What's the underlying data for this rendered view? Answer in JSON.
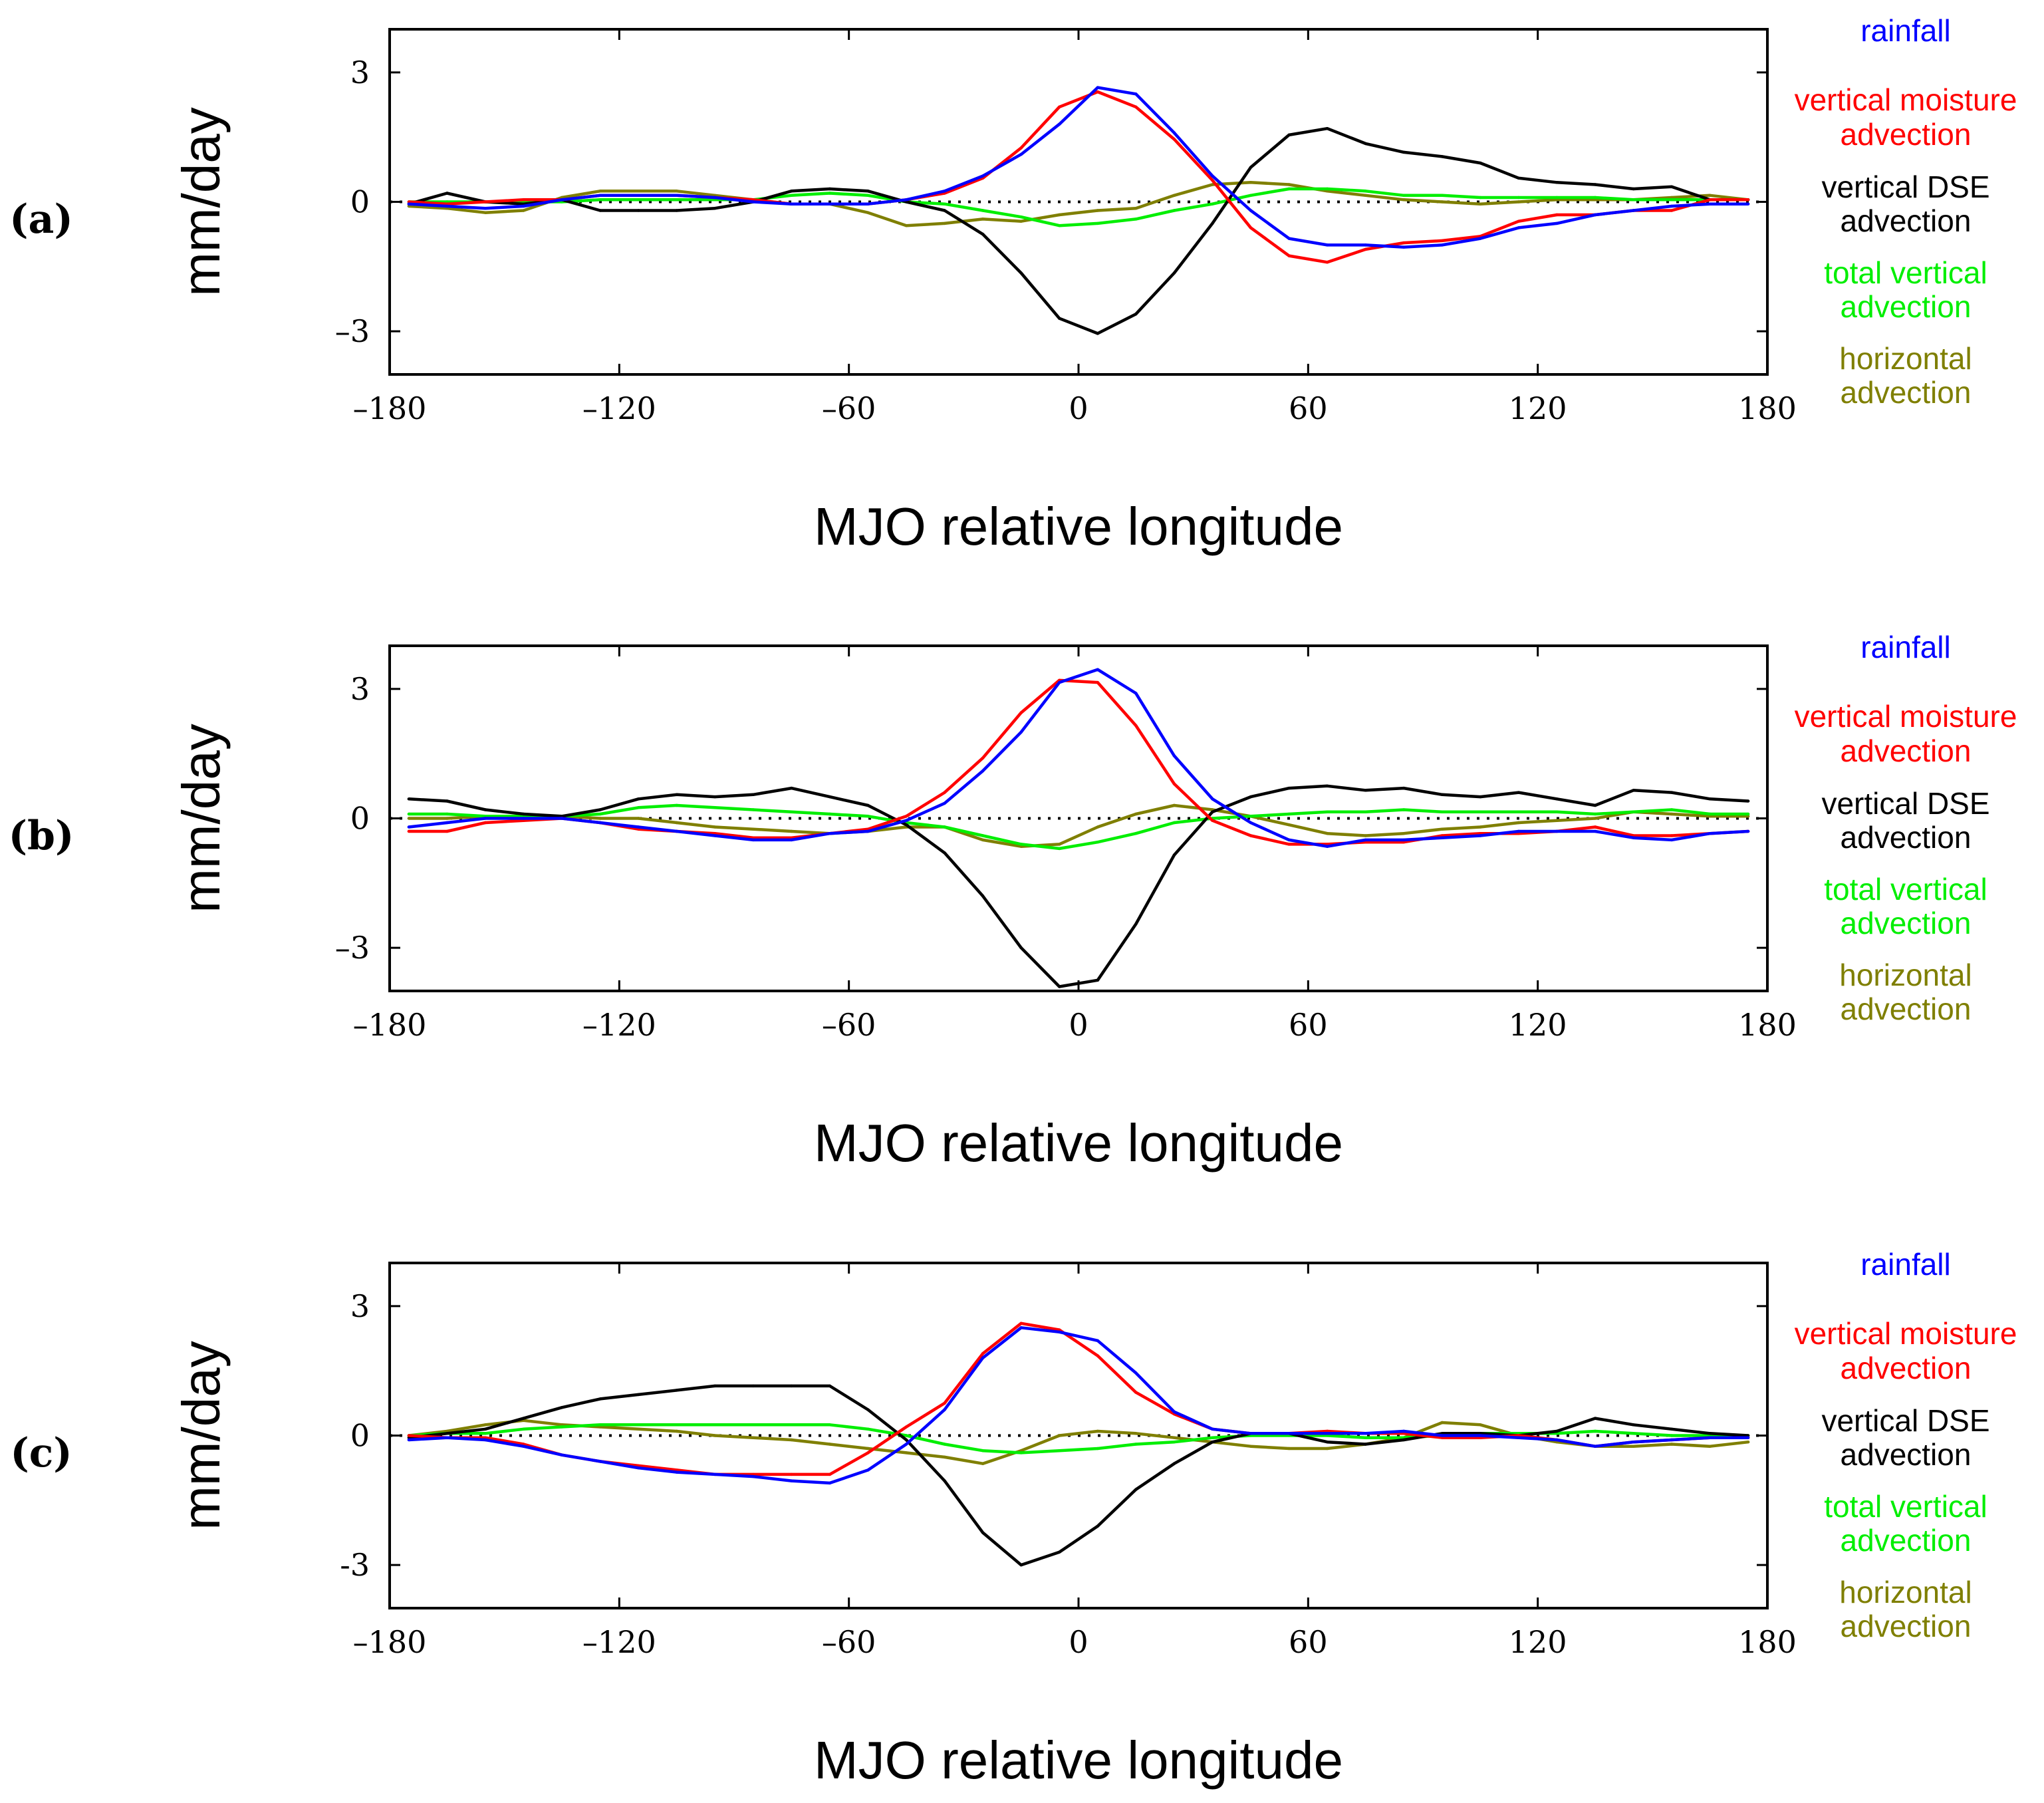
{
  "figure": {
    "xlabel": "MJO relative longitude",
    "ylabel": "mm/day",
    "legend": [
      {
        "key": "rainfall",
        "lines": [
          "rainfall"
        ]
      },
      {
        "key": "moisture",
        "lines": [
          "vertical moisture",
          "advection"
        ]
      },
      {
        "key": "dse",
        "lines": [
          "vertical DSE",
          "advection"
        ]
      },
      {
        "key": "total",
        "lines": [
          "total vertical",
          "advection"
        ]
      },
      {
        "key": "horizontal",
        "lines": [
          "horizontal",
          "advection"
        ]
      }
    ]
  },
  "chart_data": [
    {
      "type": "line",
      "panel_label": "(a)",
      "xlabel": "MJO relative longitude",
      "ylabel": "mm/day",
      "xlim": [
        -180,
        180
      ],
      "ylim": [
        -4,
        4
      ],
      "xticks": [
        -180,
        -120,
        -60,
        0,
        60,
        120,
        180
      ],
      "xtick_labels": [
        "–180",
        "–120",
        "–60",
        "0",
        "60",
        "120",
        "180"
      ],
      "yticks": [
        -3,
        0,
        3
      ],
      "ytick_labels": [
        "–3",
        "0",
        "3"
      ],
      "legend_position": "right",
      "zero_line": "dotted",
      "x": [
        -175,
        -165,
        -155,
        -145,
        -135,
        -125,
        -115,
        -105,
        -95,
        -85,
        -75,
        -65,
        -55,
        -45,
        -35,
        -25,
        -15,
        -5,
        5,
        15,
        25,
        35,
        45,
        55,
        65,
        75,
        85,
        95,
        105,
        115,
        125,
        135,
        145,
        155,
        165,
        175
      ],
      "series": [
        {
          "key": "rainfall",
          "name": "rainfall",
          "color": "#0000ff",
          "values": [
            -0.05,
            -0.1,
            -0.15,
            -0.1,
            0.05,
            0.15,
            0.15,
            0.15,
            0.1,
            0.0,
            -0.05,
            -0.05,
            -0.05,
            0.05,
            0.25,
            0.6,
            1.1,
            1.8,
            2.65,
            2.5,
            1.6,
            0.6,
            -0.2,
            -0.85,
            -1.0,
            -1.0,
            -1.05,
            -1.0,
            -0.85,
            -0.6,
            -0.5,
            -0.3,
            -0.2,
            -0.1,
            -0.05,
            -0.05
          ]
        },
        {
          "key": "moisture",
          "name": "vertical moisture advection",
          "color": "#ff0000",
          "values": [
            0.0,
            -0.05,
            0.0,
            0.05,
            0.05,
            0.15,
            0.15,
            0.15,
            0.1,
            0.05,
            -0.05,
            -0.05,
            -0.05,
            0.05,
            0.2,
            0.55,
            1.25,
            2.2,
            2.55,
            2.2,
            1.45,
            0.5,
            -0.6,
            -1.25,
            -1.4,
            -1.1,
            -0.95,
            -0.9,
            -0.8,
            -0.45,
            -0.3,
            -0.3,
            -0.2,
            -0.2,
            0.05,
            0.05
          ]
        },
        {
          "key": "dse",
          "name": "vertical DSE advection",
          "color": "#000000",
          "values": [
            -0.05,
            0.2,
            0.0,
            -0.05,
            0.05,
            -0.2,
            -0.2,
            -0.2,
            -0.15,
            0.0,
            0.25,
            0.3,
            0.25,
            0.0,
            -0.2,
            -0.75,
            -1.65,
            -2.7,
            -3.05,
            -2.6,
            -1.65,
            -0.5,
            0.8,
            1.55,
            1.7,
            1.35,
            1.15,
            1.05,
            0.9,
            0.55,
            0.45,
            0.4,
            0.3,
            0.35,
            0.05,
            0.05
          ]
        },
        {
          "key": "total",
          "name": "total vertical advection",
          "color": "#00ee00",
          "values": [
            0.0,
            0.0,
            0.0,
            0.0,
            0.0,
            0.05,
            0.05,
            0.05,
            0.05,
            0.05,
            0.15,
            0.2,
            0.15,
            0.0,
            -0.05,
            -0.2,
            -0.35,
            -0.55,
            -0.5,
            -0.4,
            -0.2,
            -0.05,
            0.15,
            0.3,
            0.3,
            0.25,
            0.15,
            0.15,
            0.1,
            0.1,
            0.1,
            0.1,
            0.05,
            0.05,
            0.05,
            0.05
          ]
        },
        {
          "key": "horizontal",
          "name": "horizontal advection",
          "color": "#7f7f00",
          "values": [
            -0.1,
            -0.15,
            -0.25,
            -0.2,
            0.1,
            0.25,
            0.25,
            0.25,
            0.15,
            0.05,
            -0.05,
            -0.05,
            -0.25,
            -0.55,
            -0.5,
            -0.4,
            -0.45,
            -0.3,
            -0.2,
            -0.15,
            0.15,
            0.4,
            0.45,
            0.4,
            0.25,
            0.15,
            0.05,
            0.0,
            -0.05,
            0.0,
            0.05,
            0.05,
            0.05,
            0.1,
            0.15,
            0.05
          ]
        }
      ]
    },
    {
      "type": "line",
      "panel_label": "(b)",
      "xlabel": "MJO relative longitude",
      "ylabel": "mm/day",
      "xlim": [
        -180,
        180
      ],
      "ylim": [
        -4,
        4
      ],
      "xticks": [
        -180,
        -120,
        -60,
        0,
        60,
        120,
        180
      ],
      "xtick_labels": [
        "–180",
        "–120",
        "–60",
        "0",
        "60",
        "120",
        "180"
      ],
      "yticks": [
        -3,
        0,
        3
      ],
      "ytick_labels": [
        "–3",
        "0",
        "3"
      ],
      "legend_position": "right",
      "zero_line": "dotted",
      "x": [
        -175,
        -165,
        -155,
        -145,
        -135,
        -125,
        -115,
        -105,
        -95,
        -85,
        -75,
        -65,
        -55,
        -45,
        -35,
        -25,
        -15,
        -5,
        5,
        15,
        25,
        35,
        45,
        55,
        65,
        75,
        85,
        95,
        105,
        115,
        125,
        135,
        145,
        155,
        165,
        175
      ],
      "series": [
        {
          "key": "rainfall",
          "name": "rainfall",
          "color": "#0000ff",
          "values": [
            -0.2,
            -0.1,
            0.0,
            0.0,
            0.0,
            -0.1,
            -0.2,
            -0.3,
            -0.4,
            -0.5,
            -0.5,
            -0.35,
            -0.3,
            -0.05,
            0.35,
            1.1,
            2.0,
            3.15,
            3.45,
            2.9,
            1.45,
            0.45,
            -0.1,
            -0.5,
            -0.65,
            -0.5,
            -0.5,
            -0.45,
            -0.4,
            -0.3,
            -0.3,
            -0.3,
            -0.45,
            -0.5,
            -0.35,
            -0.3
          ]
        },
        {
          "key": "moisture",
          "name": "vertical moisture advection",
          "color": "#ff0000",
          "values": [
            -0.3,
            -0.3,
            -0.1,
            -0.05,
            0.0,
            -0.1,
            -0.25,
            -0.3,
            -0.35,
            -0.45,
            -0.45,
            -0.35,
            -0.25,
            0.05,
            0.6,
            1.4,
            2.45,
            3.2,
            3.15,
            2.15,
            0.8,
            -0.05,
            -0.4,
            -0.6,
            -0.6,
            -0.55,
            -0.55,
            -0.4,
            -0.35,
            -0.35,
            -0.3,
            -0.2,
            -0.4,
            -0.4,
            -0.35,
            -0.3
          ]
        },
        {
          "key": "dse",
          "name": "vertical DSE advection",
          "color": "#000000",
          "values": [
            0.45,
            0.4,
            0.2,
            0.1,
            0.05,
            0.2,
            0.45,
            0.55,
            0.5,
            0.55,
            0.7,
            0.5,
            0.3,
            -0.15,
            -0.8,
            -1.8,
            -3.0,
            -3.9,
            -3.75,
            -2.45,
            -0.85,
            0.15,
            0.5,
            0.7,
            0.75,
            0.65,
            0.7,
            0.55,
            0.5,
            0.6,
            0.45,
            0.3,
            0.65,
            0.6,
            0.45,
            0.4
          ]
        },
        {
          "key": "total",
          "name": "total vertical advection",
          "color": "#00ee00",
          "values": [
            0.1,
            0.1,
            0.05,
            0.05,
            0.05,
            0.1,
            0.25,
            0.3,
            0.25,
            0.2,
            0.15,
            0.1,
            0.05,
            -0.1,
            -0.2,
            -0.4,
            -0.6,
            -0.7,
            -0.55,
            -0.35,
            -0.1,
            0.0,
            0.05,
            0.1,
            0.15,
            0.15,
            0.2,
            0.15,
            0.15,
            0.15,
            0.15,
            0.1,
            0.15,
            0.2,
            0.1,
            0.1
          ]
        },
        {
          "key": "horizontal",
          "name": "horizontal advection",
          "color": "#7f7f00",
          "values": [
            0.0,
            0.0,
            0.05,
            0.05,
            0.05,
            0.0,
            0.0,
            -0.1,
            -0.2,
            -0.25,
            -0.3,
            -0.35,
            -0.3,
            -0.2,
            -0.2,
            -0.5,
            -0.65,
            -0.6,
            -0.2,
            0.1,
            0.3,
            0.2,
            0.05,
            -0.15,
            -0.35,
            -0.4,
            -0.35,
            -0.25,
            -0.2,
            -0.1,
            -0.05,
            0.0,
            0.15,
            0.1,
            0.05,
            0.05
          ]
        }
      ]
    },
    {
      "type": "line",
      "panel_label": "(c)",
      "xlabel": "MJO relative longitude",
      "ylabel": "mm/day",
      "xlim": [
        -180,
        180
      ],
      "ylim": [
        -4,
        4
      ],
      "xticks": [
        -180,
        -120,
        -60,
        0,
        60,
        120,
        180
      ],
      "xtick_labels": [
        "–180",
        "–120",
        "–60",
        "0",
        "60",
        "120",
        "180"
      ],
      "yticks": [
        -3,
        0,
        3
      ],
      "ytick_labels": [
        "-3",
        "0",
        "3"
      ],
      "legend_position": "right",
      "zero_line": "dotted",
      "x": [
        -175,
        -165,
        -155,
        -145,
        -135,
        -125,
        -115,
        -105,
        -95,
        -85,
        -75,
        -65,
        -55,
        -45,
        -35,
        -25,
        -15,
        -5,
        5,
        15,
        25,
        35,
        45,
        55,
        65,
        75,
        85,
        95,
        105,
        115,
        125,
        135,
        145,
        155,
        165,
        175
      ],
      "series": [
        {
          "key": "rainfall",
          "name": "rainfall",
          "color": "#0000ff",
          "values": [
            -0.1,
            -0.05,
            -0.1,
            -0.25,
            -0.45,
            -0.6,
            -0.75,
            -0.85,
            -0.9,
            -0.95,
            -1.05,
            -1.1,
            -0.8,
            -0.2,
            0.6,
            1.8,
            2.5,
            2.4,
            2.2,
            1.45,
            0.55,
            0.15,
            0.05,
            0.05,
            0.05,
            0.05,
            0.1,
            0.0,
            0.0,
            -0.05,
            -0.1,
            -0.25,
            -0.15,
            -0.1,
            -0.05,
            -0.05
          ]
        },
        {
          "key": "moisture",
          "name": "vertical moisture advection",
          "color": "#ff0000",
          "values": [
            0.0,
            -0.05,
            -0.05,
            -0.2,
            -0.45,
            -0.6,
            -0.7,
            -0.8,
            -0.9,
            -0.9,
            -0.9,
            -0.9,
            -0.4,
            0.2,
            0.75,
            1.9,
            2.6,
            2.45,
            1.85,
            1.0,
            0.5,
            0.15,
            0.05,
            0.05,
            0.1,
            0.05,
            0.05,
            -0.05,
            -0.05,
            0.0,
            -0.1,
            -0.25,
            -0.15,
            -0.1,
            -0.05,
            -0.05
          ]
        },
        {
          "key": "dse",
          "name": "vertical DSE advection",
          "color": "#000000",
          "values": [
            -0.05,
            0.05,
            0.15,
            0.4,
            0.65,
            0.85,
            0.95,
            1.05,
            1.15,
            1.15,
            1.15,
            1.15,
            0.6,
            -0.1,
            -1.05,
            -2.25,
            -3.0,
            -2.7,
            -2.1,
            -1.25,
            -0.65,
            -0.15,
            0.05,
            0.05,
            -0.15,
            -0.2,
            -0.1,
            0.05,
            0.05,
            0.0,
            0.1,
            0.4,
            0.25,
            0.15,
            0.05,
            0.0
          ]
        },
        {
          "key": "total",
          "name": "total vertical advection",
          "color": "#00ee00",
          "values": [
            0.0,
            0.05,
            0.05,
            0.15,
            0.2,
            0.25,
            0.25,
            0.25,
            0.25,
            0.25,
            0.25,
            0.25,
            0.15,
            0.0,
            -0.2,
            -0.35,
            -0.4,
            -0.35,
            -0.3,
            -0.2,
            -0.15,
            -0.05,
            0.0,
            0.0,
            0.0,
            -0.05,
            -0.05,
            0.0,
            0.05,
            0.05,
            0.05,
            0.1,
            0.05,
            0.0,
            0.0,
            0.0
          ]
        },
        {
          "key": "horizontal",
          "name": "horizontal advection",
          "color": "#7f7f00",
          "values": [
            0.0,
            0.1,
            0.25,
            0.35,
            0.25,
            0.2,
            0.15,
            0.1,
            0.0,
            -0.05,
            -0.1,
            -0.2,
            -0.3,
            -0.4,
            -0.5,
            -0.65,
            -0.35,
            0.0,
            0.1,
            0.05,
            -0.05,
            -0.15,
            -0.25,
            -0.3,
            -0.3,
            -0.2,
            -0.05,
            0.3,
            0.25,
            0.0,
            -0.15,
            -0.25,
            -0.25,
            -0.2,
            -0.25,
            -0.15
          ]
        }
      ]
    }
  ]
}
